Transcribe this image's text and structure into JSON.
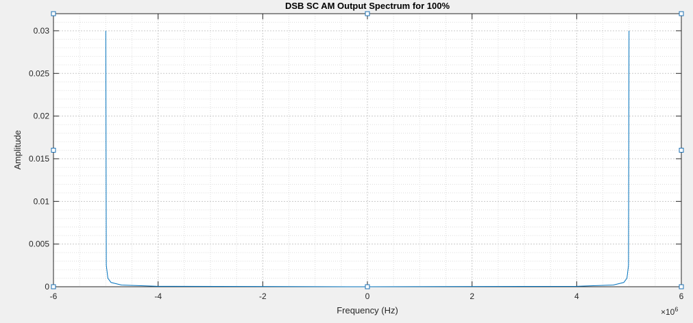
{
  "chart_data": {
    "type": "line",
    "title": "DSB SC AM Output Spectrum for 100%",
    "xlabel": "Frequency (Hz)",
    "ylabel": "Amplitude",
    "x_exponent_label": "×10",
    "x_exponent_power": "6",
    "x_scale": 1000000,
    "xlim": [
      -6000000,
      6000000
    ],
    "ylim": [
      0,
      0.032
    ],
    "x_ticks": [
      -6,
      -4,
      -2,
      0,
      2,
      4,
      6
    ],
    "x_tick_labels": [
      "-6",
      "-4",
      "-2",
      "0",
      "2",
      "4",
      "6"
    ],
    "y_ticks": [
      0,
      0.005,
      0.01,
      0.015,
      0.02,
      0.025,
      0.03
    ],
    "y_tick_labels": [
      "0",
      "0.005",
      "0.01",
      "0.015",
      "0.02",
      "0.025",
      "0.03"
    ],
    "grid": true,
    "minor_grid": true,
    "series": [
      {
        "color": "#0072bd",
        "x": [
          -5000000,
          -4990000,
          -4960000,
          -4900000,
          -4700000,
          -4000000,
          0,
          4000000,
          4700000,
          4900000,
          4960000,
          4990000,
          5000000
        ],
        "y": [
          0.03,
          0.0025,
          0.001,
          0.0005,
          0.0002,
          5e-05,
          0,
          5e-05,
          0.0002,
          0.0005,
          0.001,
          0.0025,
          0.03
        ]
      }
    ]
  }
}
